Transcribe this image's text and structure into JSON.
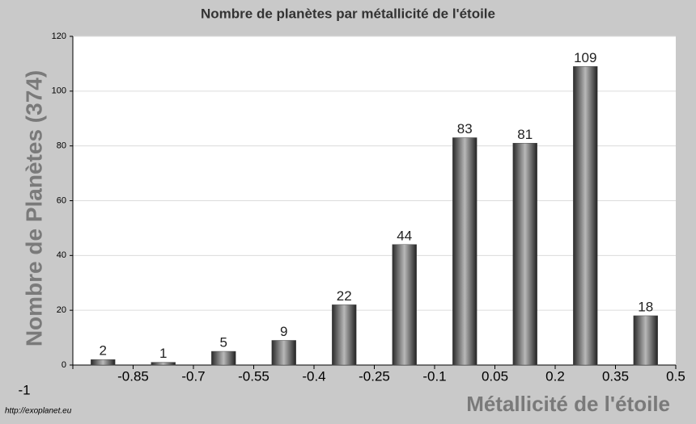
{
  "chart_data": {
    "type": "histogram",
    "title": "Nombre de planètes par métallicité de l'étoile",
    "xlabel": "Métallicité de l'étoile",
    "ylabel": "Nombre de Planètes (374)",
    "source": "http://exoplanet.eu",
    "bins": [
      -1,
      -0.85,
      -0.7,
      -0.55,
      -0.4,
      -0.25,
      -0.1,
      0.05,
      0.2,
      0.35,
      0.5
    ],
    "values": [
      2,
      1,
      5,
      9,
      22,
      44,
      83,
      81,
      109,
      18
    ],
    "color": "#4a4a4a",
    "xlim": [
      -1,
      0.5
    ],
    "xticks": [
      -1,
      -0.85,
      -0.7,
      -0.55,
      -0.4,
      -0.25,
      -0.1,
      0.05,
      0.2,
      0.35,
      0.5
    ],
    "ylim": [
      0,
      120
    ],
    "yticks": [
      0,
      20,
      40,
      60,
      80,
      100,
      120
    ],
    "grid": true
  }
}
